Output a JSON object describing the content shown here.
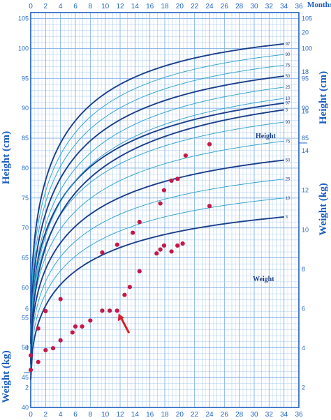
{
  "chart_data": {
    "type": "scatter",
    "x_axis": {
      "label": "Months",
      "range": [
        0,
        36
      ],
      "ticks": [
        "0",
        "2",
        "4",
        "6",
        "8",
        "10",
        "12",
        "14",
        "16",
        "18",
        "20",
        "22",
        "24",
        "26",
        "28",
        "30",
        "32",
        "34",
        "36"
      ]
    },
    "height_axis": {
      "label": "Height (cm)",
      "range": [
        40,
        106
      ],
      "ticks": [
        "40",
        "45",
        "50",
        "55",
        "60",
        "65",
        "70",
        "75",
        "80",
        "85",
        "90",
        "95",
        "100",
        "105"
      ],
      "right_ticks": [
        "85",
        "90",
        "95",
        "100",
        "105"
      ]
    },
    "weight_axis": {
      "label": "Weight (kg)",
      "range": [
        1,
        21
      ],
      "left_ticks": [
        "2",
        "4",
        "6"
      ],
      "right_ticks": [
        "2",
        "4",
        "6",
        "8",
        "10",
        "12",
        "14",
        "16",
        "18",
        "20"
      ]
    },
    "curve_labels": {
      "height": "Height",
      "weight": "Weight"
    },
    "percentile_labels": [
      "97",
      "90",
      "75",
      "50",
      "25",
      "10",
      "3"
    ],
    "height_points": [
      {
        "x": 0,
        "y": 48.7
      },
      {
        "x": 1,
        "y": 53.2
      },
      {
        "x": 2,
        "y": 56.1
      },
      {
        "x": 4,
        "y": 58.1
      },
      {
        "x": 9.6,
        "y": 65.9
      },
      {
        "x": 11.6,
        "y": 67.2
      },
      {
        "x": 13.7,
        "y": 69.2
      },
      {
        "x": 14.6,
        "y": 71.0
      },
      {
        "x": 17.4,
        "y": 74.1
      },
      {
        "x": 17.9,
        "y": 76.3
      },
      {
        "x": 18.9,
        "y": 77.9
      },
      {
        "x": 19.7,
        "y": 78.2
      },
      {
        "x": 20.8,
        "y": 82.1
      },
      {
        "x": 24,
        "y": 84.0
      }
    ],
    "weight_points": [
      {
        "x": 0,
        "y": 2.9
      },
      {
        "x": 1,
        "y": 3.3
      },
      {
        "x": 2,
        "y": 3.9
      },
      {
        "x": 3,
        "y": 4.0
      },
      {
        "x": 4,
        "y": 4.4
      },
      {
        "x": 5.6,
        "y": 4.8
      },
      {
        "x": 6,
        "y": 5.1
      },
      {
        "x": 6.9,
        "y": 5.1
      },
      {
        "x": 8,
        "y": 5.4
      },
      {
        "x": 9.6,
        "y": 5.9
      },
      {
        "x": 10.6,
        "y": 5.9
      },
      {
        "x": 11.6,
        "y": 5.9
      },
      {
        "x": 12.6,
        "y": 6.7
      },
      {
        "x": 13.3,
        "y": 7.1
      },
      {
        "x": 14.6,
        "y": 7.9
      },
      {
        "x": 16.9,
        "y": 8.8
      },
      {
        "x": 17.4,
        "y": 9.0
      },
      {
        "x": 17.9,
        "y": 9.2
      },
      {
        "x": 18.9,
        "y": 8.9
      },
      {
        "x": 19.7,
        "y": 9.2
      },
      {
        "x": 20.4,
        "y": 9.3
      },
      {
        "x": 24,
        "y": 11.2
      }
    ],
    "arrow_at": {
      "x": 11.6,
      "y": 5.9
    },
    "grid": true,
    "colors": {
      "grid": "#7fb0e8",
      "frame": "#1b5fc2",
      "labels": "#2a6ec2",
      "main_curve": "#1b3f8a",
      "minor_curve": "#38a6cf",
      "points": "#c2184a",
      "arrow": "#d81f2a"
    }
  }
}
